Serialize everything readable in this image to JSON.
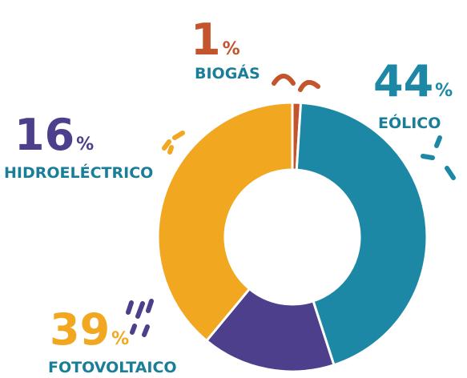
{
  "chart_data": {
    "type": "donut",
    "categories": [
      "BIOGÁS",
      "EÓLICO",
      "HIDROELÉCTRICO",
      "FOTOVOLTAICO"
    ],
    "values": [
      1,
      44,
      16,
      39
    ],
    "colors": [
      "#c4542c",
      "#1c88a6",
      "#4d3f8c",
      "#f1a71f"
    ],
    "unit": "%"
  }
}
